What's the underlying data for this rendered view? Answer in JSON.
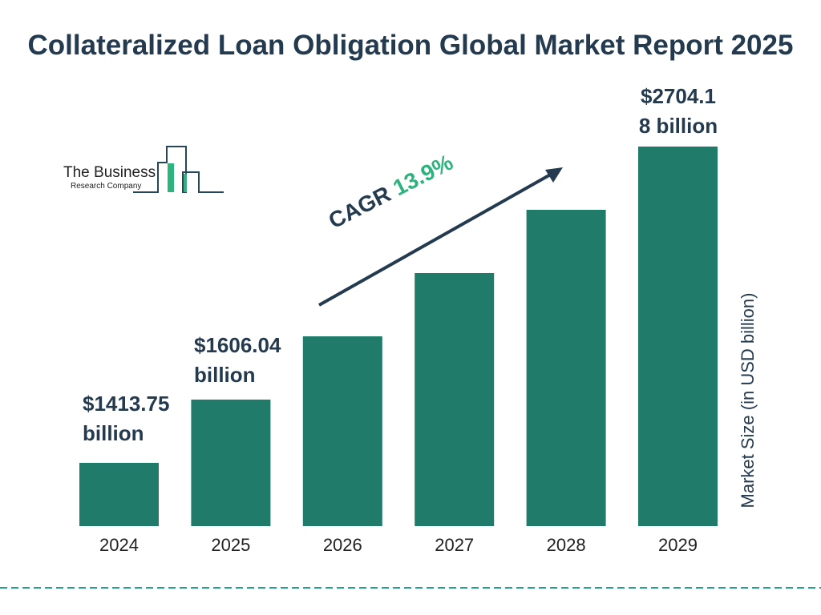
{
  "chart_data": {
    "type": "bar",
    "title": "Collateralized Loan Obligation Global Market Report 2025",
    "ylabel": "Market Size (in USD billion)",
    "xlabel": "",
    "categories": [
      "2024",
      "2025",
      "2026",
      "2027",
      "2028",
      "2029"
    ],
    "values": [
      1413.75,
      1606.04,
      1829.3,
      2083.6,
      2373.2,
      2704.18
    ],
    "data_labels": {
      "2024": "$1413.75 billion",
      "2025": "$1606.04 billion",
      "2029": "$2704.18 billion"
    },
    "label_lines": {
      "2024": [
        "$1413.75",
        "billion"
      ],
      "2025": [
        "$1606.04",
        "billion"
      ],
      "2029": [
        "$2704.1",
        "8 billion"
      ]
    },
    "annotation": {
      "prefix": "CAGR",
      "value": "13.9%"
    },
    "bar_color": "#217b6b",
    "grid": false
  },
  "logo": {
    "line1": "The Business",
    "line2": "Research Company"
  },
  "colors": {
    "title": "#233a4f",
    "accent": "#2fb37e",
    "dashed_line": "#2a9b8f"
  }
}
